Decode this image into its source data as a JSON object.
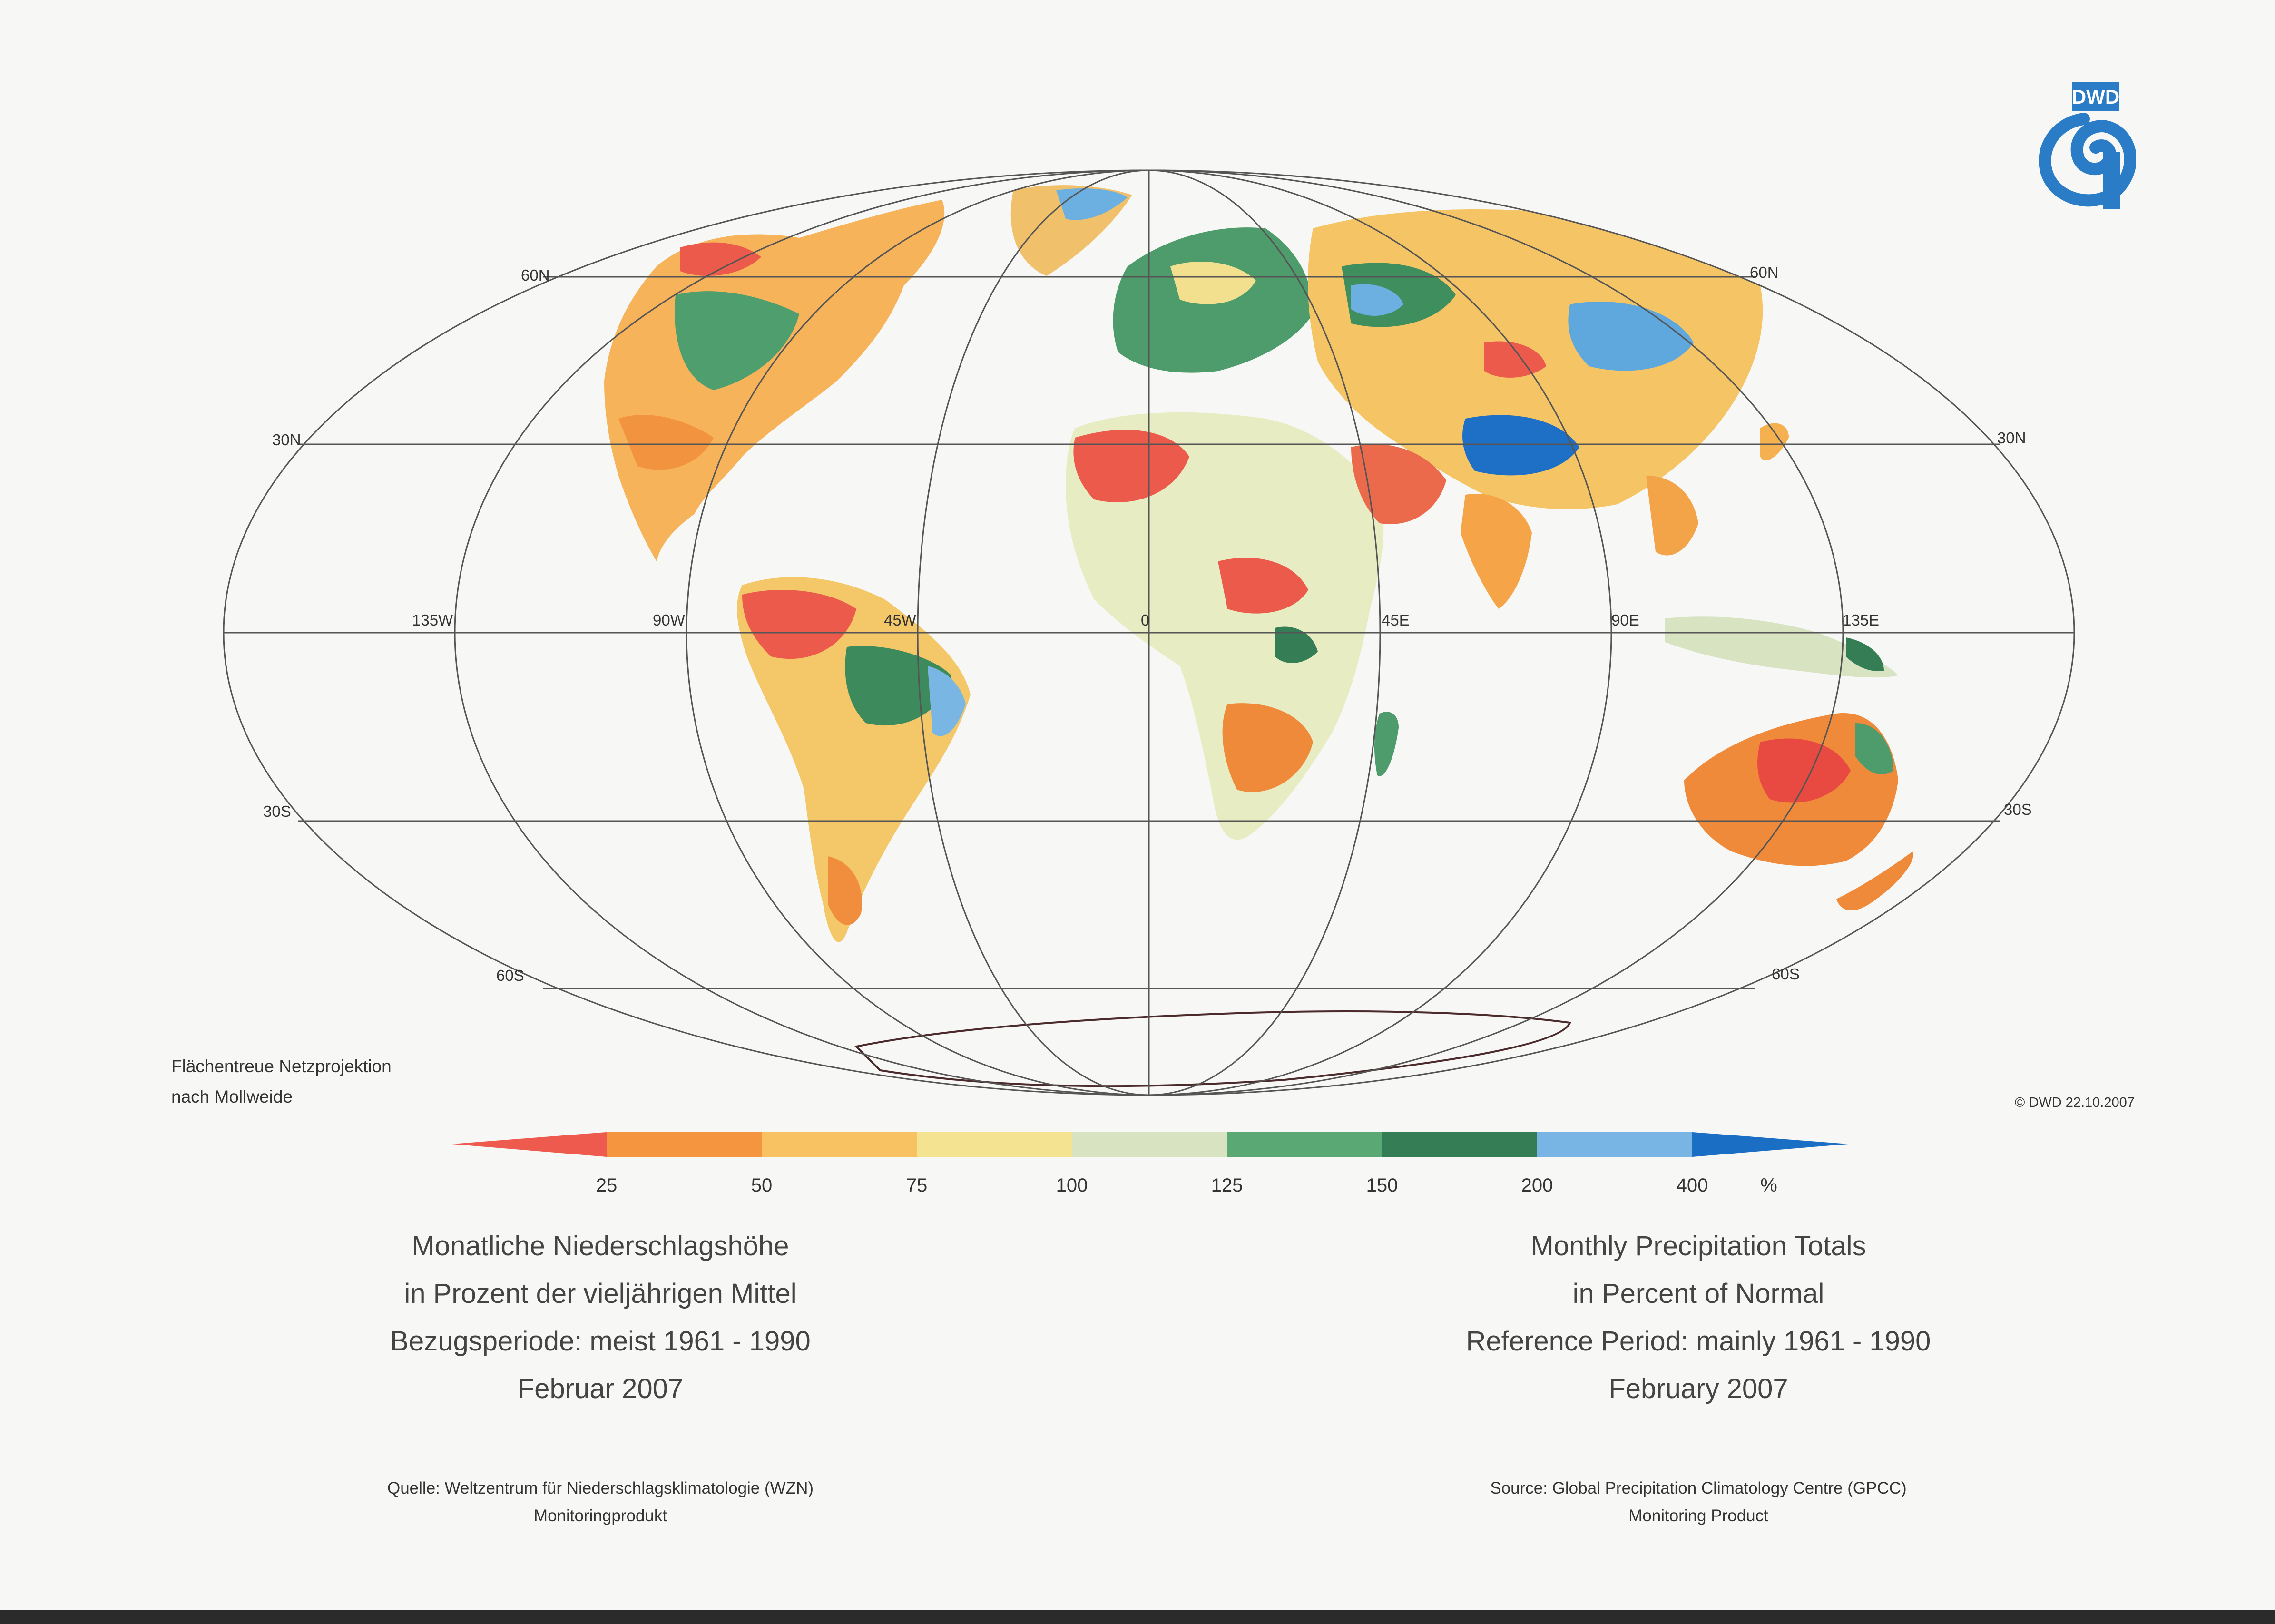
{
  "grid_labels": {
    "lat_left": [
      "60N",
      "30N",
      "30S",
      "60S"
    ],
    "lat_right": [
      "60N",
      "30N",
      "30S",
      "60S"
    ],
    "lon": [
      "135W",
      "90W",
      "45W",
      "0",
      "45E",
      "90E",
      "135E"
    ]
  },
  "logo": {
    "text": "DWD",
    "color": "#2a7cc7"
  },
  "projection_note": [
    "Flächentreue Netzprojektion",
    "nach Mollweide"
  ],
  "copyright": "© DWD 22.10.2007",
  "legend": {
    "ticks": [
      "25",
      "50",
      "75",
      "100",
      "125",
      "150",
      "200",
      "400"
    ],
    "unit": "%",
    "colors": [
      "#ee5a4e",
      "#f5953f",
      "#f8c161",
      "#f4e391",
      "#d7e3c1",
      "#5aa873",
      "#357e55",
      "#78b5e4",
      "#1a6fc4"
    ]
  },
  "title_de": [
    "Monatliche Niederschlagshöhe",
    "in Prozent der vieljährigen Mittel",
    "Bezugsperiode: meist 1961 - 1990",
    "Februar 2007"
  ],
  "title_en": [
    "Monthly Precipitation Totals",
    "in Percent of Normal",
    "Reference Period: mainly 1961 - 1990",
    "February 2007"
  ],
  "source_de": [
    "Quelle: Weltzentrum für Niederschlagsklimatologie (WZN)",
    "Monitoringprodukt"
  ],
  "source_en": [
    "Source: Global Precipitation Climatology Centre (GPCC)",
    "Monitoring Product"
  ]
}
